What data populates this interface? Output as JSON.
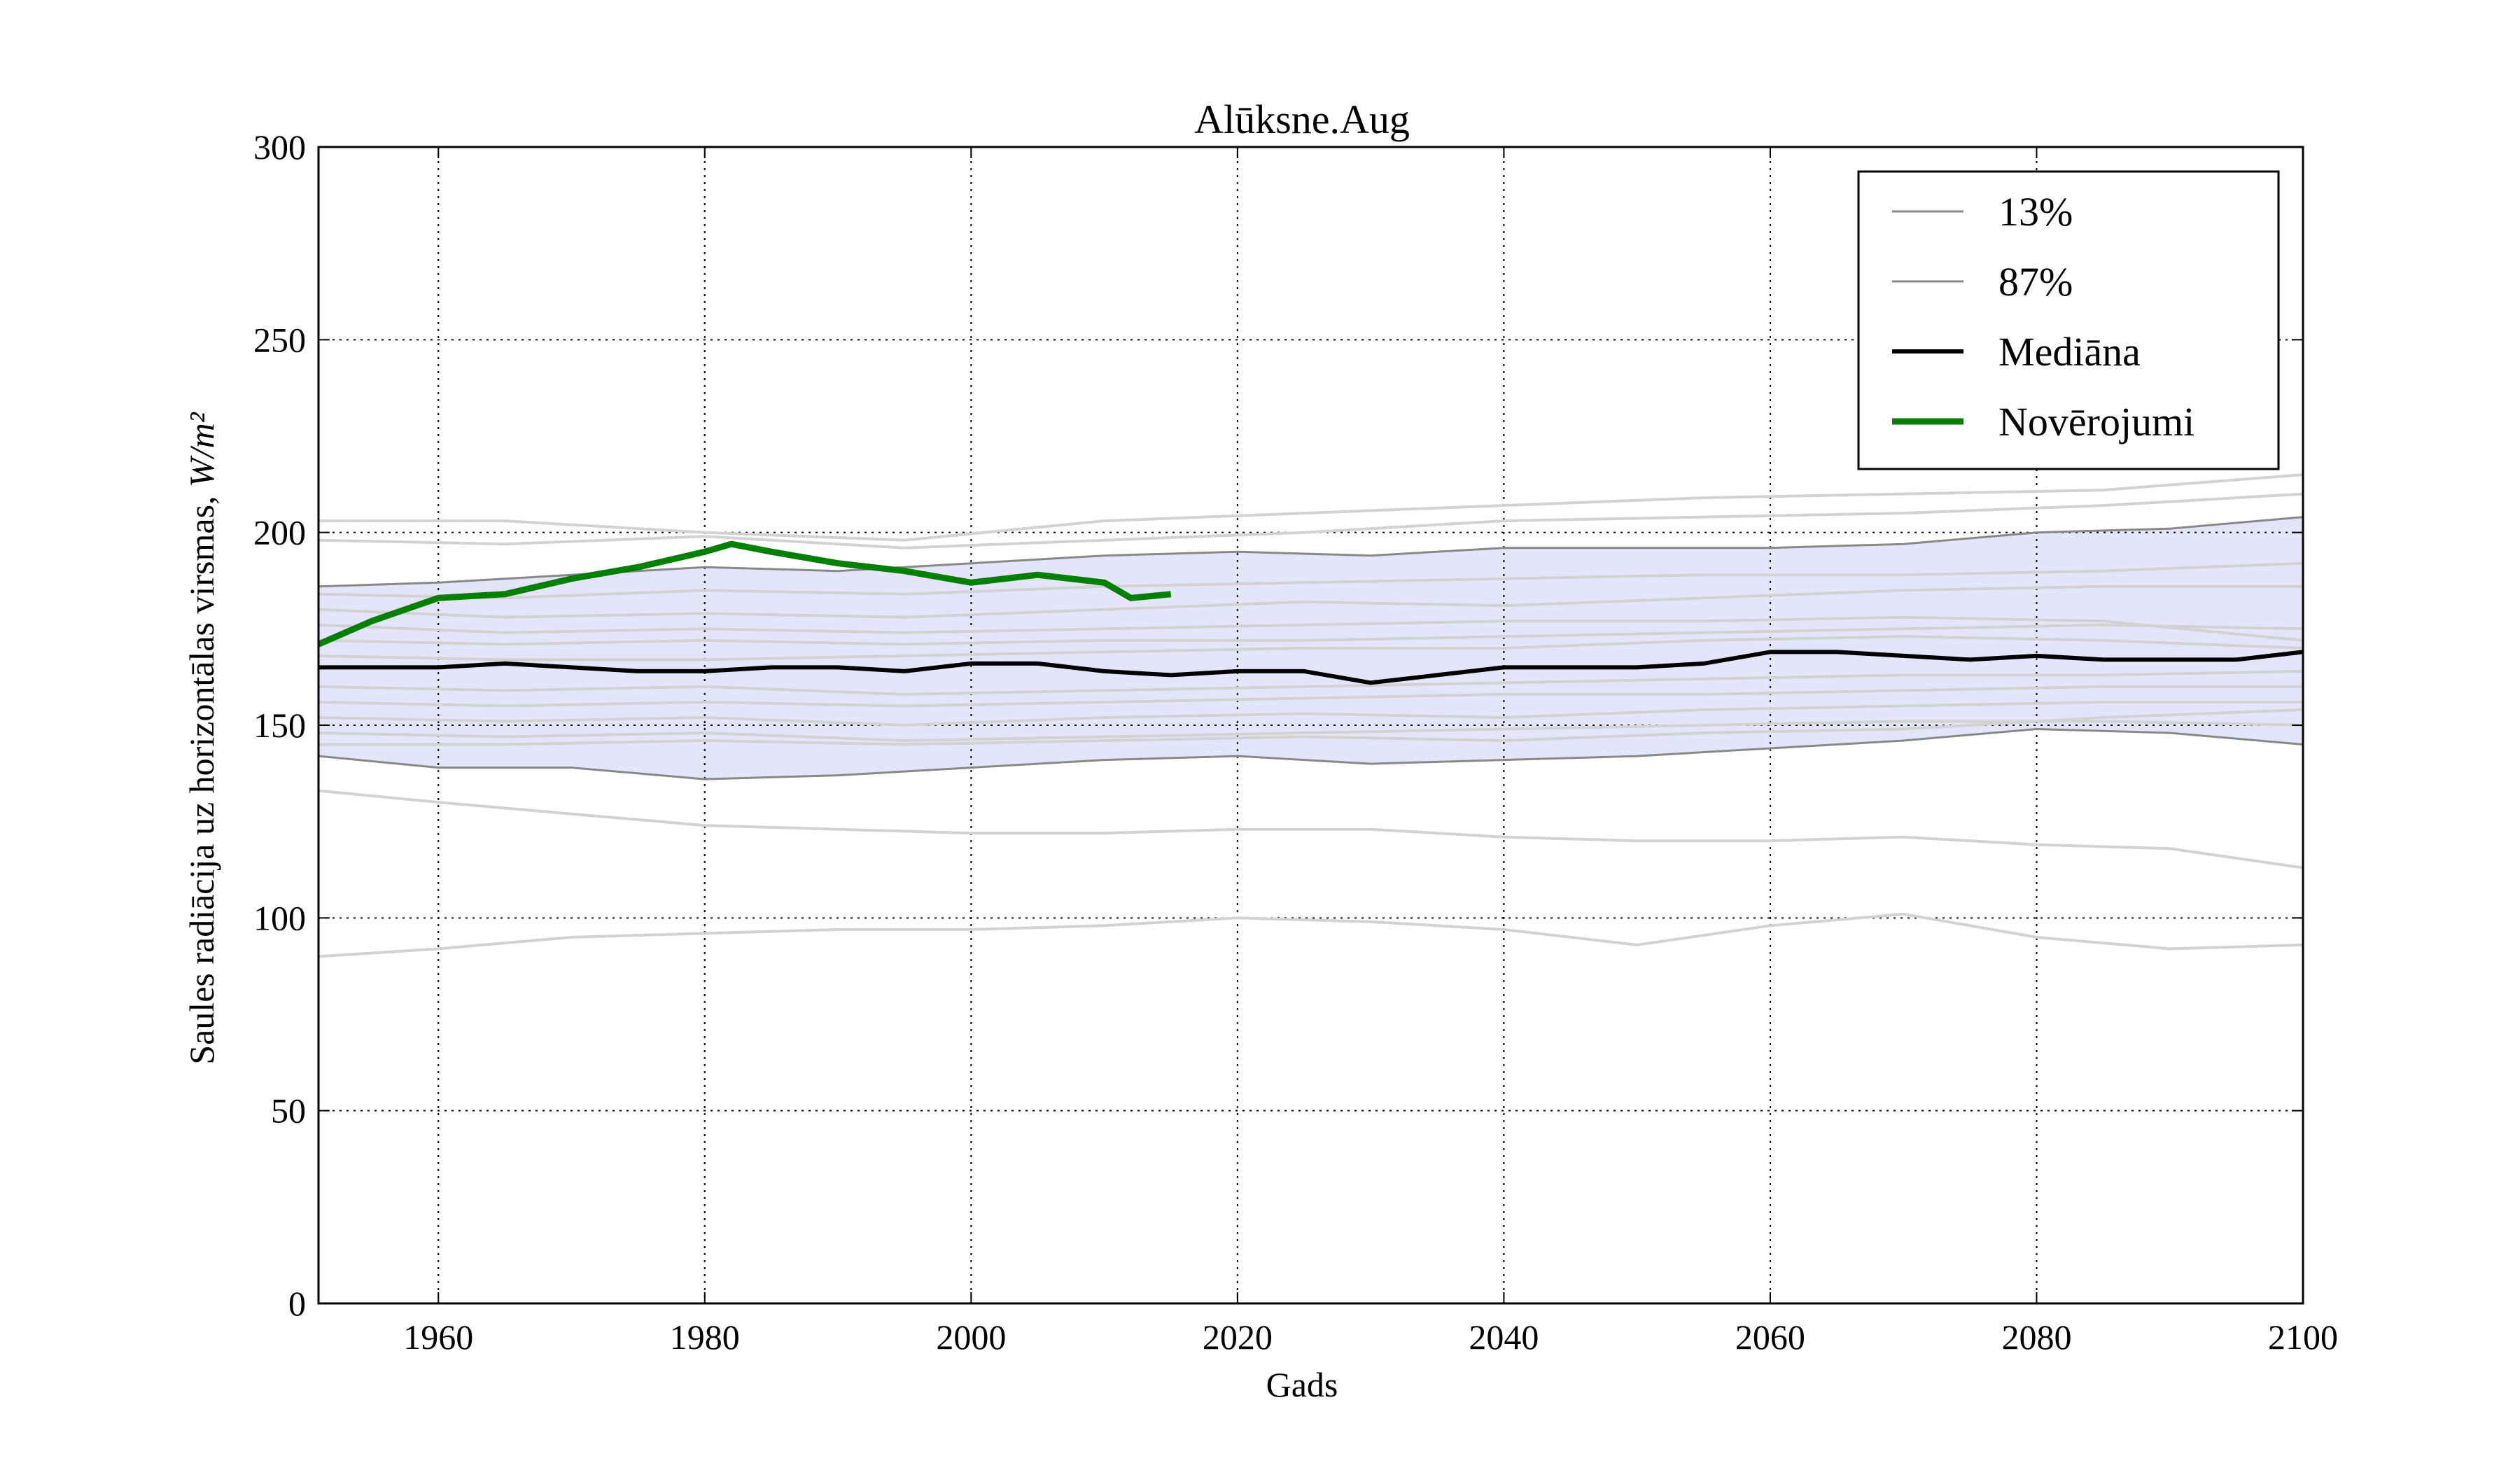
{
  "chart_data": {
    "type": "line",
    "title": "Alūksne.Aug",
    "xlabel": "Gads",
    "ylabel": "Saules radiācija uz horizontālas virsmas, ",
    "ylabel_unit": "W/m²",
    "xlim": [
      1951,
      2100
    ],
    "ylim": [
      0,
      300
    ],
    "xticks": [
      1960,
      1980,
      2000,
      2020,
      2040,
      2060,
      2080,
      2100
    ],
    "yticks": [
      0,
      50,
      100,
      150,
      200,
      250,
      300
    ],
    "grid": true,
    "legend_position": "top-right",
    "band": {
      "fill_color": "#e4e4fb",
      "x": [
        1951,
        1960,
        1970,
        1980,
        1990,
        2000,
        2010,
        2020,
        2030,
        2040,
        2050,
        2060,
        2070,
        2080,
        2090,
        2100
      ],
      "lower": [
        142,
        139,
        139,
        136,
        137,
        139,
        141,
        142,
        140,
        141,
        142,
        144,
        146,
        149,
        148,
        145
      ],
      "upper": [
        186,
        187,
        189,
        191,
        190,
        192,
        194,
        195,
        194,
        196,
        196,
        196,
        197,
        200,
        201,
        204
      ]
    },
    "series": [
      {
        "name": "13%",
        "color": "#888888",
        "width": 3,
        "x": [
          1951,
          1960,
          1970,
          1980,
          1990,
          2000,
          2010,
          2020,
          2030,
          2040,
          2050,
          2060,
          2070,
          2080,
          2090,
          2100
        ],
        "y": [
          142,
          139,
          139,
          136,
          137,
          139,
          141,
          142,
          140,
          141,
          142,
          144,
          146,
          149,
          148,
          145
        ]
      },
      {
        "name": "87%",
        "color": "#888888",
        "width": 3,
        "x": [
          1951,
          1960,
          1970,
          1980,
          1990,
          2000,
          2010,
          2020,
          2030,
          2040,
          2050,
          2060,
          2070,
          2080,
          2090,
          2100
        ],
        "y": [
          186,
          187,
          189,
          191,
          190,
          192,
          194,
          195,
          194,
          196,
          196,
          196,
          197,
          200,
          201,
          204
        ]
      },
      {
        "name": "Mediāna",
        "color": "#000000",
        "width": 6,
        "x": [
          1951,
          1955,
          1960,
          1965,
          1970,
          1975,
          1980,
          1985,
          1990,
          1995,
          2000,
          2005,
          2010,
          2015,
          2020,
          2025,
          2030,
          2035,
          2040,
          2045,
          2050,
          2055,
          2060,
          2065,
          2070,
          2075,
          2080,
          2085,
          2090,
          2095,
          2100
        ],
        "y": [
          165,
          165,
          165,
          166,
          165,
          164,
          164,
          165,
          165,
          164,
          166,
          166,
          164,
          163,
          164,
          164,
          161,
          163,
          165,
          165,
          165,
          166,
          169,
          169,
          168,
          167,
          168,
          167,
          167,
          167,
          169
        ]
      },
      {
        "name": "Novērojumi",
        "color": "#008000",
        "width": 9,
        "x": [
          1951,
          1955,
          1960,
          1965,
          1970,
          1975,
          1980,
          1982,
          1985,
          1990,
          1995,
          2000,
          2005,
          2010,
          2012,
          2015
        ],
        "y": [
          171,
          177,
          183,
          184,
          188,
          191,
          195,
          197,
          195,
          192,
          190,
          187,
          189,
          187,
          183,
          184
        ]
      }
    ],
    "ensemble_color": "#d2d2d2",
    "ensemble": [
      {
        "x": [
          1951,
          1965,
          1980,
          1995,
          2010,
          2025,
          2040,
          2055,
          2070,
          2085,
          2100
        ],
        "y": [
          203,
          203,
          200,
          198,
          203,
          205,
          207,
          209,
          210,
          211,
          215
        ]
      },
      {
        "x": [
          1951,
          1965,
          1980,
          1995,
          2010,
          2025,
          2040,
          2055,
          2070,
          2085,
          2100
        ],
        "y": [
          198,
          197,
          199,
          196,
          198,
          200,
          203,
          204,
          205,
          207,
          210
        ]
      },
      {
        "x": [
          1951,
          1965,
          1980,
          1995,
          2010,
          2025,
          2040,
          2055,
          2070,
          2085,
          2100
        ],
        "y": [
          184,
          183,
          185,
          184,
          186,
          187,
          188,
          189,
          189,
          190,
          192
        ]
      },
      {
        "x": [
          1951,
          1965,
          1980,
          1995,
          2010,
          2025,
          2040,
          2055,
          2070,
          2085,
          2100
        ],
        "y": [
          180,
          178,
          179,
          178,
          180,
          182,
          181,
          183,
          185,
          186,
          186
        ]
      },
      {
        "x": [
          1951,
          1965,
          1980,
          1995,
          2010,
          2025,
          2040,
          2055,
          2070,
          2085,
          2100
        ],
        "y": [
          176,
          174,
          175,
          174,
          175,
          176,
          177,
          177,
          178,
          177,
          172
        ]
      },
      {
        "x": [
          1951,
          1965,
          1980,
          1995,
          2010,
          2025,
          2040,
          2055,
          2070,
          2085,
          2100
        ],
        "y": [
          172,
          171,
          172,
          171,
          172,
          172,
          173,
          174,
          175,
          176,
          175
        ]
      },
      {
        "x": [
          1951,
          1965,
          1980,
          1995,
          2010,
          2025,
          2040,
          2055,
          2070,
          2085,
          2100
        ],
        "y": [
          168,
          167,
          167,
          168,
          169,
          170,
          170,
          172,
          173,
          172,
          170
        ]
      },
      {
        "x": [
          1951,
          1965,
          1980,
          1995,
          2010,
          2025,
          2040,
          2055,
          2070,
          2085,
          2100
        ],
        "y": [
          160,
          159,
          160,
          158,
          159,
          160,
          161,
          162,
          163,
          163,
          164
        ]
      },
      {
        "x": [
          1951,
          1965,
          1980,
          1995,
          2010,
          2025,
          2040,
          2055,
          2070,
          2085,
          2100
        ],
        "y": [
          156,
          155,
          156,
          155,
          156,
          157,
          158,
          158,
          159,
          160,
          160
        ]
      },
      {
        "x": [
          1951,
          1965,
          1980,
          1995,
          2010,
          2025,
          2040,
          2055,
          2070,
          2085,
          2100
        ],
        "y": [
          152,
          151,
          152,
          150,
          152,
          153,
          152,
          154,
          155,
          156,
          156
        ]
      },
      {
        "x": [
          1951,
          1965,
          1980,
          1995,
          2010,
          2025,
          2040,
          2055,
          2070,
          2085,
          2100
        ],
        "y": [
          148,
          147,
          148,
          146,
          147,
          148,
          149,
          150,
          151,
          151,
          150
        ]
      },
      {
        "x": [
          1951,
          1965,
          1980,
          1995,
          2010,
          2025,
          2040,
          2055,
          2070,
          2085,
          2100
        ],
        "y": [
          145,
          145,
          146,
          145,
          146,
          147,
          146,
          148,
          149,
          152,
          154
        ]
      },
      {
        "x": [
          1951,
          1960,
          1970,
          1980,
          1990,
          2000,
          2010,
          2020,
          2030,
          2040,
          2050,
          2060,
          2070,
          2080,
          2090,
          2100
        ],
        "y": [
          133,
          130,
          127,
          124,
          123,
          122,
          122,
          123,
          123,
          121,
          120,
          120,
          121,
          119,
          118,
          113
        ]
      },
      {
        "x": [
          1951,
          1960,
          1970,
          1980,
          1990,
          2000,
          2010,
          2020,
          2030,
          2040,
          2050,
          2060,
          2070,
          2080,
          2090,
          2100
        ],
        "y": [
          90,
          92,
          95,
          96,
          97,
          97,
          98,
          100,
          99,
          97,
          93,
          98,
          101,
          95,
          92,
          93
        ]
      }
    ]
  }
}
